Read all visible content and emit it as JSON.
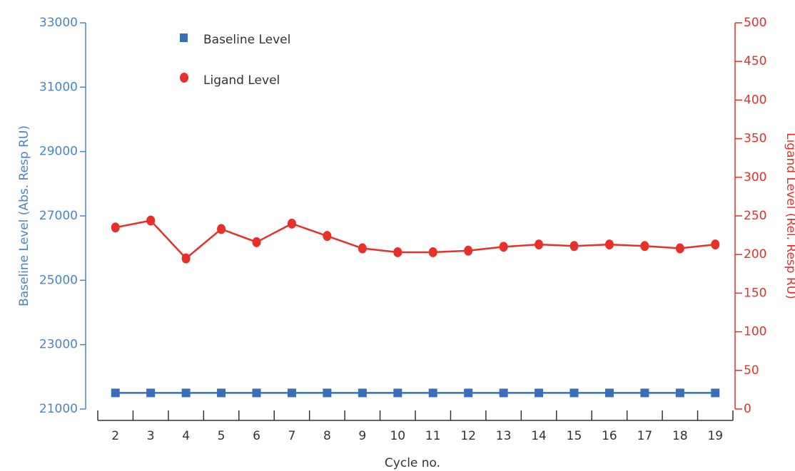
{
  "chart_data": {
    "type": "line",
    "x_label": "Cycle no.",
    "y_label": "Baseline Level (Abs. Resp RU)",
    "y2_label": "Ligand Level (Rel. Resp RU)",
    "categories": [
      2,
      3,
      4,
      5,
      6,
      7,
      8,
      9,
      10,
      11,
      12,
      13,
      14,
      15,
      16,
      17,
      18,
      19
    ],
    "series": [
      {
        "name": "Baseline Level",
        "color": "#3a6fb8",
        "marker": "square",
        "values": [
          21500,
          21500,
          21500,
          21500,
          21500,
          21500,
          21500,
          21500,
          21500,
          21500,
          21500,
          21500,
          21500,
          21500,
          21500,
          21500,
          21500,
          21500
        ]
      },
      {
        "name": "Ligand Level",
        "color": "#e8302a",
        "marker": "circle",
        "axis": "y2",
        "values": [
          235,
          244,
          195,
          233,
          216,
          240,
          224,
          208,
          203,
          203,
          205,
          210,
          213,
          211,
          213,
          211,
          208,
          213
        ]
      }
    ],
    "ylim": [
      21000,
      33000
    ],
    "yticks": [
      21000,
      23000,
      25000,
      27000,
      29000,
      31000,
      33000
    ],
    "y2lim": [
      0,
      500
    ],
    "y2ticks": [
      0,
      50,
      100,
      150,
      200,
      250,
      300,
      350,
      400,
      450,
      500
    ],
    "y_color": "#4a86c5",
    "y2_color": "#e8302a"
  }
}
